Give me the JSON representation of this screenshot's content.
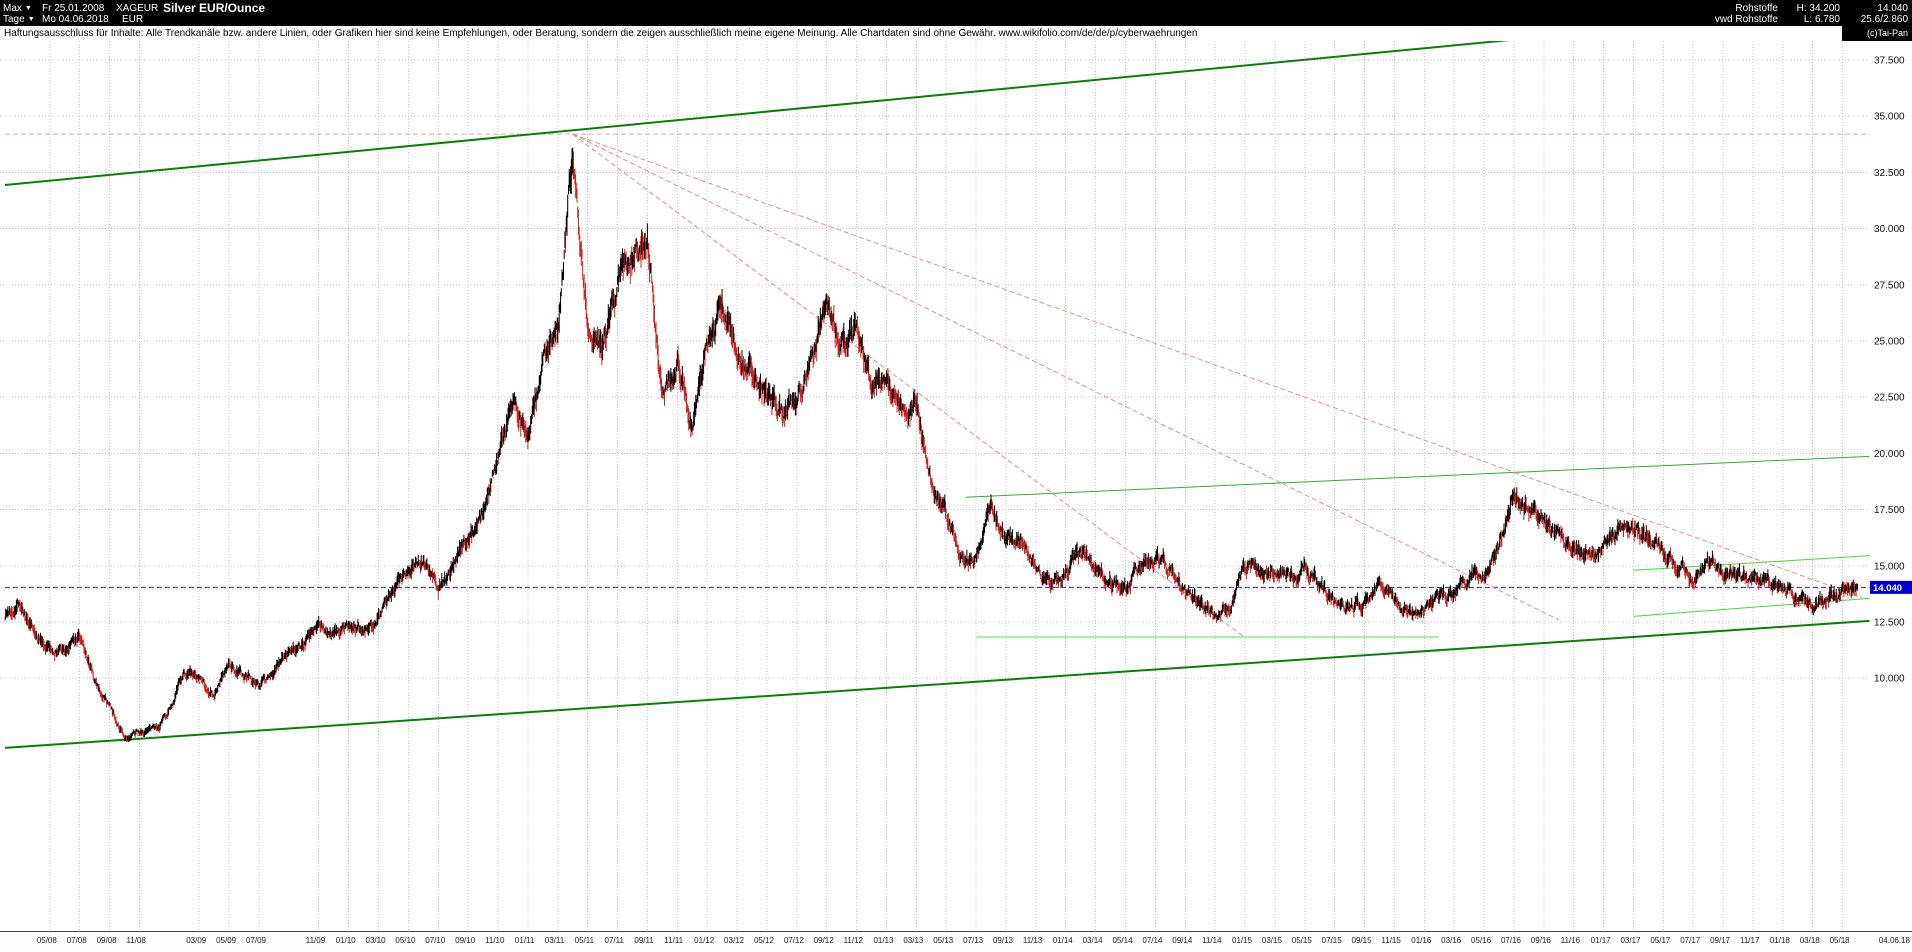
{
  "header": {
    "range_label": "Max",
    "dropdown_arrow": "▼",
    "start_date": "Fr 25.01.2008",
    "symbol": "XAGEUR",
    "title": "Silver EUR/Ounce",
    "period_label": "Tage",
    "end_date": "Mo 04.06.2018",
    "currency": "EUR",
    "right": {
      "category": "Rohstoffe",
      "feed": "vwd Rohstoffe",
      "high": "H: 34.200",
      "low": "L: 6.780",
      "last": "14.040",
      "info": "25.6/2.860",
      "copyright": "(c)Tai-Pan"
    }
  },
  "disclaimer": "Haftungsausschluss für Inhalte: Alle Trendkanäle bzw. andere Linien, oder Grafiken hier sind keine Empfehlungen, oder Beratung, sondern die zeigen ausschließlich meine eigene Meinung. Alle Chartdaten sind ohne Gewähr.  www.wikifolio.com/de/de/p/cyberwaehrungen",
  "chart_data": {
    "type": "candlestick",
    "title": "Silver EUR/Ounce",
    "symbol": "XAGEUR",
    "timeframe": "daily",
    "range_start": "25.01.2008",
    "range_end": "04.06.2018",
    "high": 34.2,
    "low": 6.78,
    "last_price": 14.04,
    "grid": true,
    "y_axis_visible_ticks": [
      10.0,
      37.5
    ],
    "y_ticks": [
      {
        "label": "37.500",
        "price": 37.5
      },
      {
        "label": "35.000",
        "price": 35.0
      },
      {
        "label": "32.500",
        "price": 32.5
      },
      {
        "label": "30.000",
        "price": 30.0
      },
      {
        "label": "27.500",
        "price": 27.5
      },
      {
        "label": "25.000",
        "price": 25.0
      },
      {
        "label": "22.500",
        "price": 22.5
      },
      {
        "label": "20.000",
        "price": 20.0
      },
      {
        "label": "17.500",
        "price": 17.5
      },
      {
        "label": "15.000",
        "price": 15.0
      },
      {
        "label": "12.500",
        "price": 12.5
      },
      {
        "label": "10.000",
        "price": 10.0
      }
    ],
    "x_ticks": [
      {
        "label": "05/08",
        "m": 3
      },
      {
        "label": "07/08",
        "m": 5
      },
      {
        "label": "09/08",
        "m": 7
      },
      {
        "label": "11/08",
        "m": 9
      },
      {
        "label": "03/09",
        "m": 13
      },
      {
        "label": "05/09",
        "m": 15
      },
      {
        "label": "07/09",
        "m": 17
      },
      {
        "label": "11/09",
        "m": 21
      },
      {
        "label": "01/10",
        "m": 23
      },
      {
        "label": "03/10",
        "m": 25
      },
      {
        "label": "05/10",
        "m": 27
      },
      {
        "label": "07/10",
        "m": 29
      },
      {
        "label": "09/10",
        "m": 31
      },
      {
        "label": "11/10",
        "m": 33
      },
      {
        "label": "01/11",
        "m": 35
      },
      {
        "label": "03/11",
        "m": 37
      },
      {
        "label": "05/11",
        "m": 39
      },
      {
        "label": "07/11",
        "m": 41
      },
      {
        "label": "09/11",
        "m": 43
      },
      {
        "label": "11/11",
        "m": 45
      },
      {
        "label": "01/12",
        "m": 47
      },
      {
        "label": "03/12",
        "m": 49
      },
      {
        "label": "05/12",
        "m": 51
      },
      {
        "label": "07/12",
        "m": 53
      },
      {
        "label": "09/12",
        "m": 55
      },
      {
        "label": "11/12",
        "m": 57
      },
      {
        "label": "01/13",
        "m": 59
      },
      {
        "label": "03/13",
        "m": 61
      },
      {
        "label": "05/13",
        "m": 63
      },
      {
        "label": "07/13",
        "m": 65
      },
      {
        "label": "09/13",
        "m": 67
      },
      {
        "label": "11/13",
        "m": 69
      },
      {
        "label": "01/14",
        "m": 71
      },
      {
        "label": "03/14",
        "m": 73
      },
      {
        "label": "05/14",
        "m": 75
      },
      {
        "label": "07/14",
        "m": 77
      },
      {
        "label": "09/14",
        "m": 79
      },
      {
        "label": "11/14",
        "m": 81
      },
      {
        "label": "01/15",
        "m": 83
      },
      {
        "label": "03/15",
        "m": 85
      },
      {
        "label": "05/15",
        "m": 87
      },
      {
        "label": "07/15",
        "m": 89
      },
      {
        "label": "09/15",
        "m": 91
      },
      {
        "label": "11/15",
        "m": 93
      },
      {
        "label": "01/16",
        "m": 95
      },
      {
        "label": "03/16",
        "m": 97
      },
      {
        "label": "05/16",
        "m": 99
      },
      {
        "label": "07/16",
        "m": 101
      },
      {
        "label": "09/16",
        "m": 103
      },
      {
        "label": "11/16",
        "m": 105
      },
      {
        "label": "01/17",
        "m": 107
      },
      {
        "label": "03/17",
        "m": 109
      },
      {
        "label": "05/17",
        "m": 111
      },
      {
        "label": "07/17",
        "m": 113
      },
      {
        "label": "09/17",
        "m": 115
      },
      {
        "label": "11/17",
        "m": 117
      },
      {
        "label": "01/18",
        "m": 119
      },
      {
        "label": "03/18",
        "m": 121
      },
      {
        "label": "05/18",
        "m": 123
      },
      {
        "label": "04.06.18",
        "m": 125,
        "right_edge": true
      }
    ],
    "months_start": "02/2008",
    "monthly_close": [
      12.8,
      13.4,
      11.8,
      11.3,
      11.2,
      11.9,
      9.8,
      8.8,
      7.3,
      7.6,
      7.7,
      8.6,
      10.3,
      9.9,
      9.3,
      10.6,
      10.1,
      9.7,
      10.3,
      11.3,
      11.6,
      12.3,
      11.9,
      12.4,
      11.9,
      12.9,
      13.8,
      15.0,
      15.3,
      14.0,
      15.0,
      16.3,
      17.3,
      19.9,
      22.6,
      20.6,
      24.1,
      25.3,
      33.6,
      25.8,
      24.6,
      27.6,
      28.9,
      29.5,
      22.8,
      24.1,
      21.3,
      24.9,
      26.4,
      24.6,
      23.6,
      22.4,
      21.9,
      22.3,
      24.4,
      26.7,
      24.9,
      25.7,
      23.1,
      23.4,
      21.9,
      22.2,
      18.6,
      17.4,
      15.1,
      15.3,
      17.7,
      16.1,
      16.2,
      14.9,
      14.3,
      14.6,
      15.7,
      15.1,
      14.3,
      13.9,
      15.2,
      15.4,
      14.9,
      13.9,
      13.3,
      12.6,
      13.1,
      15.1,
      14.7,
      14.8,
      14.4,
      14.9,
      14.1,
      13.5,
      13.1,
      13.4,
      14.1,
      13.3,
      13.1,
      13.1,
      13.6,
      13.7,
      14.6,
      14.5,
      15.9,
      18.2,
      17.6,
      17.1,
      16.1,
      15.9,
      15.4,
      15.9,
      16.7,
      16.8,
      16.2,
      15.6,
      14.9,
      14.5,
      15.1,
      14.8,
      14.5,
      14.4,
      14.2,
      14.0,
      13.5,
      13.3,
      13.6,
      13.8,
      14.04
    ],
    "candle_up_color": "#000000",
    "candle_down_color": "#cc2222",
    "price_marker": {
      "label": "14.040",
      "color": "#0000d0",
      "text_color": "#ffffff"
    },
    "overlays": {
      "horizontal_lines": [
        {
          "name": "all-time-high-line",
          "price": 34.2,
          "m1": 0,
          "m2": 124.8,
          "color": "#f4a0a0",
          "dash": true
        },
        {
          "name": "current-price-line",
          "price": 14.04,
          "m1": 0,
          "m2": 124.8,
          "color": "#2828c8",
          "dash": true
        },
        {
          "name": "support-line-11-8",
          "price": 11.83,
          "m1": 65,
          "m2": 96,
          "color": "#57d957",
          "dash": false
        }
      ],
      "trend_lines": [
        {
          "name": "main-channel-upper",
          "m1": 0,
          "p1": 31.94,
          "m2": 124.8,
          "p2": 39.93,
          "color": "#088008",
          "width": 2
        },
        {
          "name": "main-channel-lower",
          "m1": 0,
          "p1": 6.9,
          "m2": 124.8,
          "p2": 12.55,
          "color": "#088008",
          "width": 2
        },
        {
          "name": "mid-channel-line",
          "m1": 64.3,
          "p1": 18.05,
          "m2": 124.8,
          "p2": 19.87,
          "color": "#3aa83a",
          "width": 1
        },
        {
          "name": "recent-channel-upper",
          "m1": 109,
          "p1": 14.8,
          "m2": 124.8,
          "p2": 15.45,
          "color": "#45d945",
          "width": 1
        },
        {
          "name": "recent-channel-lower",
          "m1": 109,
          "p1": 12.75,
          "m2": 124.8,
          "p2": 13.55,
          "color": "#45d945",
          "width": 1
        },
        {
          "name": "fan-line-1",
          "m1": 38,
          "p1": 34.2,
          "m2": 124.3,
          "p2": 13.6,
          "color": "#f28b8b",
          "width": 1,
          "dash": true
        },
        {
          "name": "fan-line-2",
          "m1": 38,
          "p1": 34.2,
          "m2": 104,
          "p2": 12.6,
          "color": "#f28b8b",
          "width": 1,
          "dash": true
        },
        {
          "name": "fan-line-3",
          "m1": 38,
          "p1": 34.2,
          "m2": 83,
          "p2": 11.8,
          "color": "#f28b8b",
          "width": 1,
          "dash": true
        }
      ]
    }
  }
}
